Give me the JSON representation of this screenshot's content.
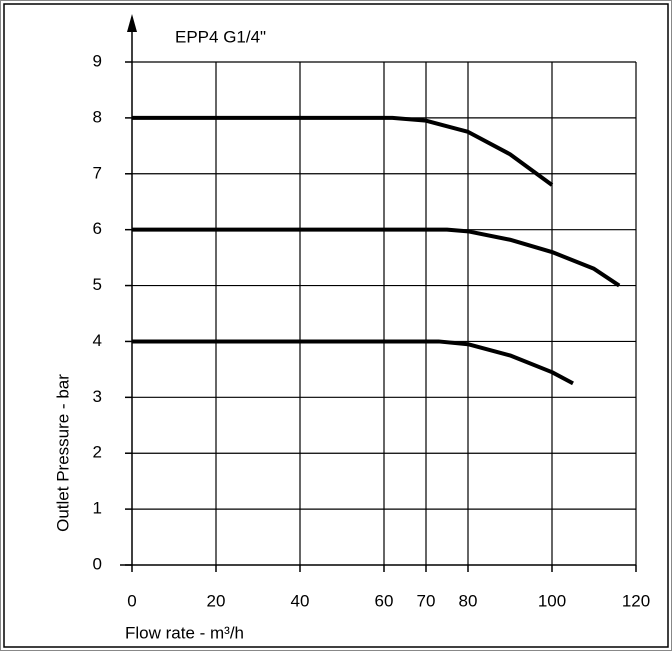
{
  "chart_data": {
    "type": "line",
    "title": "EPP4 G1/4\"",
    "x_label": "Flow rate - m³/h",
    "y_label": "Outlet Pressure - bar",
    "xlim": [
      0,
      120
    ],
    "ylim": [
      0,
      9
    ],
    "xticks": [
      0,
      20,
      40,
      60,
      70,
      80,
      100,
      120
    ],
    "yticks": [
      0,
      1,
      2,
      3,
      4,
      5,
      6,
      7,
      8,
      9
    ],
    "grid": true,
    "series": [
      {
        "color": "#000000",
        "x": [
          0,
          62,
          70,
          80,
          90,
          100
        ],
        "values": [
          8,
          8,
          7.95,
          7.75,
          7.35,
          6.8
        ]
      },
      {
        "color": "#000000",
        "x": [
          0,
          75,
          80,
          90,
          100,
          110,
          116
        ],
        "values": [
          6,
          6,
          5.97,
          5.82,
          5.6,
          5.3,
          5.0
        ]
      },
      {
        "color": "#000000",
        "x": [
          0,
          73,
          80,
          90,
          100,
          105
        ],
        "values": [
          4,
          4,
          3.95,
          3.75,
          3.45,
          3.25
        ]
      }
    ]
  }
}
